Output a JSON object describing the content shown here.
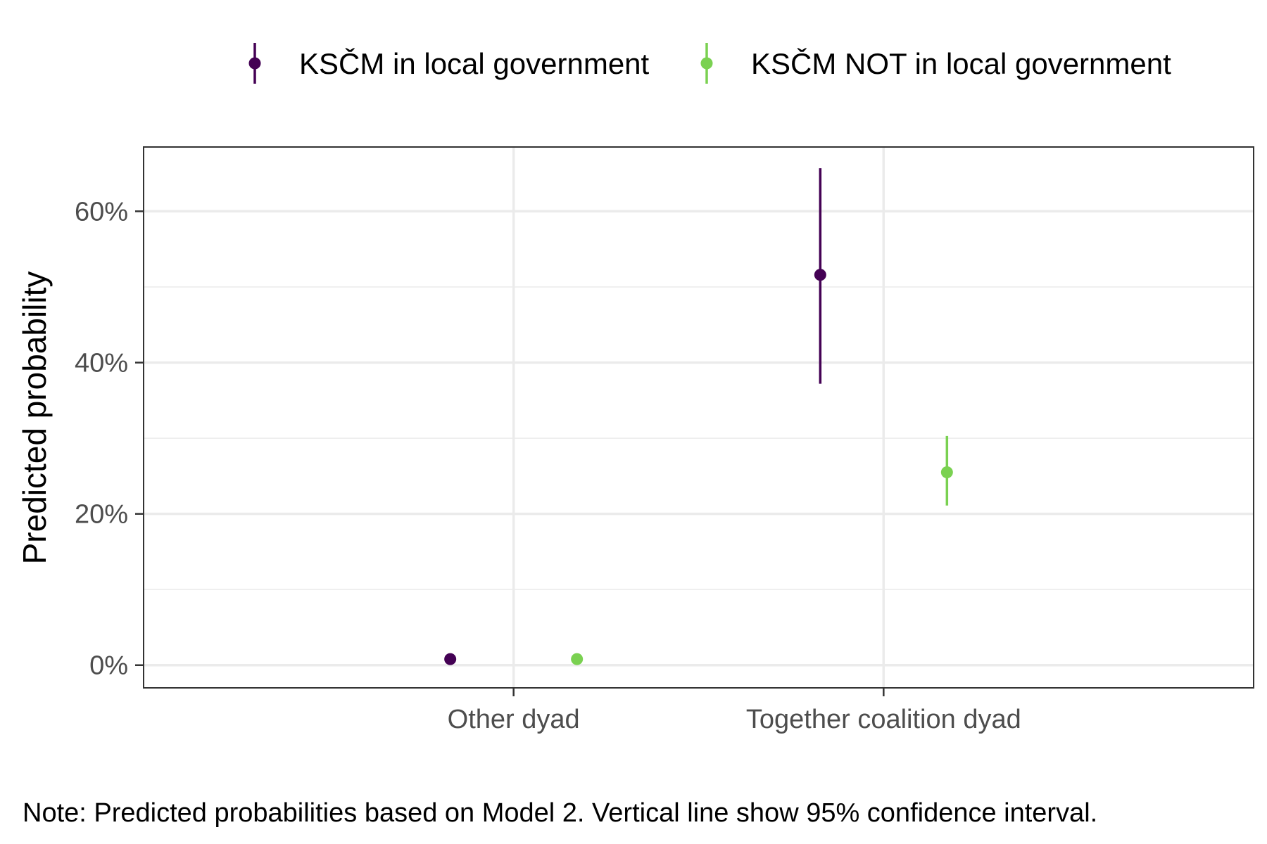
{
  "chart_data": {
    "type": "scatter",
    "categories": [
      "Other dyad",
      "Together coalition dyad"
    ],
    "ylabel": "Predicted probability",
    "xlabel": "",
    "yticks": [
      "0%",
      "20%",
      "40%",
      "60%"
    ],
    "ylim": [
      -0.03,
      0.685
    ],
    "grid": true,
    "legend_position": "top",
    "series": [
      {
        "name": "KSČM in local government",
        "color": "#440154",
        "points": [
          {
            "category": "Other dyad",
            "value": 0.008,
            "ci_low": 0.005,
            "ci_high": 0.011
          },
          {
            "category": "Together coalition dyad",
            "value": 0.516,
            "ci_low": 0.372,
            "ci_high": 0.657
          }
        ]
      },
      {
        "name": "KSČM NOT in local government",
        "color": "#7AD151",
        "points": [
          {
            "category": "Other dyad",
            "value": 0.008,
            "ci_low": 0.006,
            "ci_high": 0.01
          },
          {
            "category": "Together coalition dyad",
            "value": 0.255,
            "ci_low": 0.211,
            "ci_high": 0.303
          }
        ]
      }
    ],
    "note": "Note: Predicted probabilities based on Model 2. Vertical line show 95% confidence interval."
  }
}
